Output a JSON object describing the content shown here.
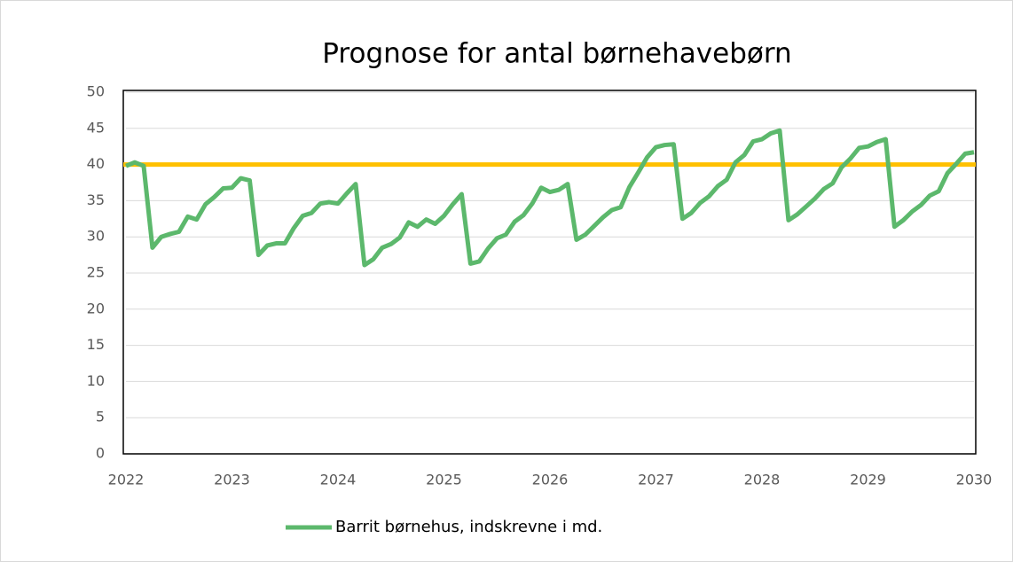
{
  "chart_data": {
    "type": "line",
    "title": "Prognose for antal børnehavebørn",
    "x": [
      2022,
      2022.083,
      2022.167,
      2022.25,
      2022.333,
      2022.417,
      2022.5,
      2022.583,
      2022.667,
      2022.75,
      2022.833,
      2022.917,
      2023,
      2023.083,
      2023.167,
      2023.25,
      2023.333,
      2023.417,
      2023.5,
      2023.583,
      2023.667,
      2023.75,
      2023.833,
      2023.917,
      2024,
      2024.083,
      2024.167,
      2024.25,
      2024.333,
      2024.417,
      2024.5,
      2024.583,
      2024.667,
      2024.75,
      2024.833,
      2024.917,
      2025,
      2025.083,
      2025.167,
      2025.25,
      2025.333,
      2025.417,
      2025.5,
      2025.583,
      2025.667,
      2025.75,
      2025.833,
      2025.917,
      2026,
      2026.083,
      2026.167,
      2026.25,
      2026.333,
      2026.417,
      2026.5,
      2026.583,
      2026.667,
      2026.75,
      2026.833,
      2026.917,
      2027,
      2027.083,
      2027.167,
      2027.25,
      2027.333,
      2027.417,
      2027.5,
      2027.583,
      2027.667,
      2027.75,
      2027.833,
      2027.917,
      2028,
      2028.083,
      2028.167,
      2028.25,
      2028.333,
      2028.417,
      2028.5,
      2028.583,
      2028.667,
      2028.75,
      2028.833,
      2028.917,
      2029,
      2029.083,
      2029.167,
      2029.25,
      2029.333,
      2029.417,
      2029.5,
      2029.583,
      2029.667,
      2029.75,
      2029.833,
      2029.917,
      2030
    ],
    "series": [
      {
        "name": "Barrit børnehus, indskrevne i md.",
        "color": "#5cb86c",
        "values": [
          39.8,
          40.3,
          39.8,
          28.5,
          30.0,
          30.4,
          30.7,
          32.8,
          32.4,
          34.5,
          35.5,
          36.7,
          36.8,
          38.1,
          37.8,
          27.5,
          28.8,
          29.1,
          29.1,
          31.2,
          32.9,
          33.3,
          34.6,
          34.8,
          34.6,
          36.0,
          37.3,
          26.1,
          26.9,
          28.5,
          29.0,
          29.9,
          32.0,
          31.4,
          32.4,
          31.8,
          32.9,
          34.5,
          35.9,
          26.3,
          26.6,
          28.4,
          29.8,
          30.3,
          32.1,
          33.0,
          34.6,
          36.8,
          36.2,
          36.5,
          37.3,
          29.6,
          30.3,
          31.5,
          32.7,
          33.7,
          34.1,
          36.9,
          38.9,
          41.0,
          42.4,
          42.7,
          42.8,
          32.5,
          33.3,
          34.7,
          35.6,
          37.0,
          37.9,
          40.3,
          41.3,
          43.2,
          43.5,
          44.3,
          44.7,
          32.3,
          33.1,
          34.2,
          35.3,
          36.6,
          37.4,
          39.6,
          40.8,
          42.3,
          42.5,
          43.1,
          43.5,
          31.4,
          32.3,
          33.5,
          34.4,
          35.7,
          36.3,
          38.8,
          40.1,
          41.5,
          41.7
        ]
      }
    ],
    "reference_line": {
      "value": 40,
      "color": "#ffc000"
    },
    "xlim": [
      2022,
      2030
    ],
    "xticks": [
      2022,
      2023,
      2024,
      2025,
      2026,
      2027,
      2028,
      2029,
      2030
    ],
    "ylim": [
      0,
      50
    ],
    "yticks": [
      0,
      5,
      10,
      15,
      20,
      25,
      30,
      35,
      40,
      45,
      50
    ],
    "grid": true,
    "legend": "bottom"
  }
}
